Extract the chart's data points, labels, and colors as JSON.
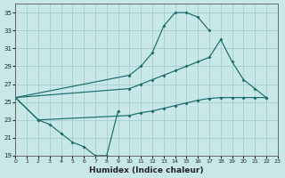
{
  "xlabel": "Humidex (Indice chaleur)",
  "background_color": "#c8e8e8",
  "grid_color": "#a0c8c8",
  "line_color": "#1a6b6b",
  "xlim": [
    0,
    23
  ],
  "ylim": [
    19,
    36
  ],
  "xticks": [
    0,
    1,
    2,
    3,
    4,
    5,
    6,
    7,
    8,
    9,
    10,
    11,
    12,
    13,
    14,
    15,
    16,
    17,
    18,
    19,
    20,
    21,
    22,
    23
  ],
  "yticks": [
    19,
    21,
    23,
    25,
    27,
    29,
    31,
    33,
    35
  ],
  "curve_top_x": [
    0,
    10,
    11,
    12,
    13,
    14,
    15,
    16,
    17
  ],
  "curve_top_y": [
    25.5,
    28.0,
    29.0,
    30.5,
    33.5,
    35.0,
    35.0,
    34.5,
    33.0
  ],
  "curve_mid_x": [
    0,
    10,
    11,
    12,
    13,
    14,
    15,
    16,
    17,
    18,
    19,
    20,
    21,
    22
  ],
  "curve_mid_y": [
    25.5,
    26.5,
    27.0,
    27.5,
    28.0,
    28.5,
    29.0,
    29.5,
    30.0,
    32.0,
    29.5,
    27.5,
    26.5,
    25.5
  ],
  "curve_low_x": [
    0,
    2,
    10,
    11,
    12,
    13,
    14,
    15,
    16,
    17,
    18,
    19,
    20,
    21,
    22
  ],
  "curve_low_y": [
    25.5,
    23.0,
    23.5,
    23.8,
    24.0,
    24.3,
    24.6,
    24.9,
    25.2,
    25.4,
    25.5,
    25.5,
    25.5,
    25.5,
    25.5
  ],
  "curve_dip_x": [
    2,
    3,
    4,
    5,
    6,
    7,
    8,
    9
  ],
  "curve_dip_y": [
    23.0,
    22.5,
    21.5,
    20.5,
    20.0,
    19.0,
    19.0,
    24.0
  ]
}
